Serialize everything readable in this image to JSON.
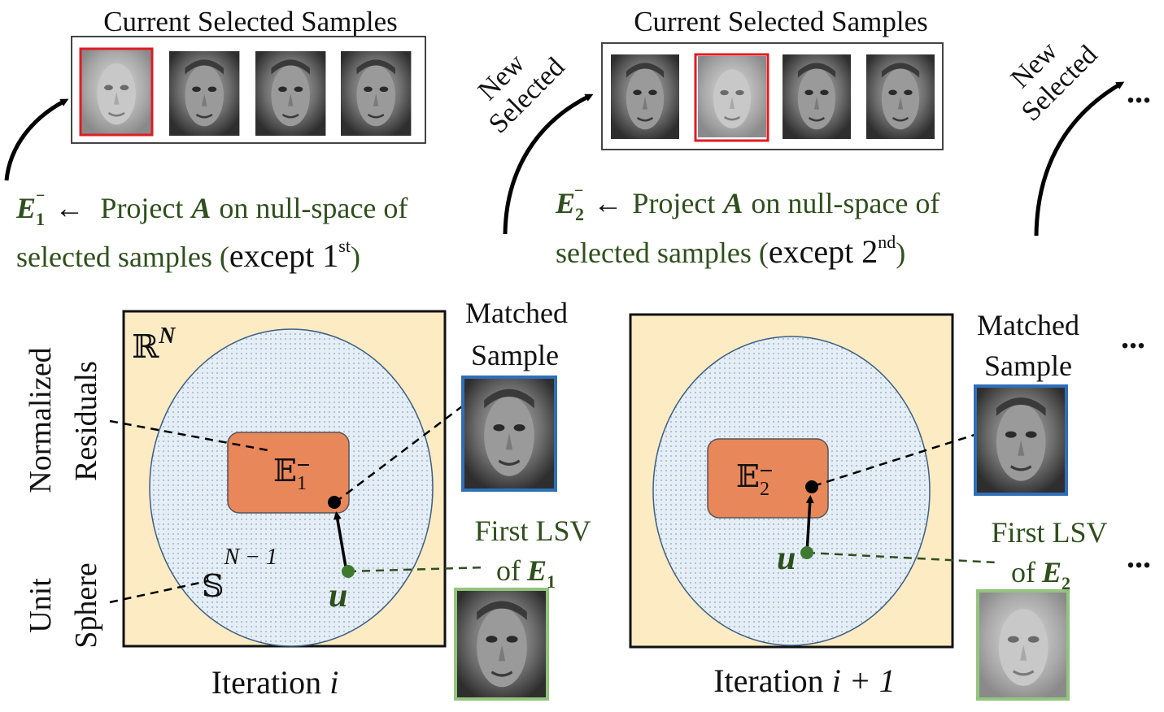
{
  "colors": {
    "accent_green": "#2f4f1c",
    "panel_fill": "#fdebc4",
    "sphere_fill": "#e5eef6",
    "subspace_fill": "#e8875a",
    "selected_border": "#e01b24",
    "matched_border": "#2f6fb8",
    "lsv_border": "#93c47d",
    "arrow": "#000000"
  },
  "top": {
    "left_title": "Current Selected Samples",
    "right_title": "Current Selected Samples",
    "new_selected_1": [
      "New",
      "Selected"
    ],
    "new_selected_2": [
      "New",
      "Selected"
    ],
    "ellipsis": "...",
    "step1": {
      "symbol_base": "E",
      "symbol_sub": "1",
      "arrow_text": "←",
      "prefix": "Project",
      "matrix": "A",
      "suffix": "on null-space of",
      "line2": "selected samples (",
      "except": "except 1",
      "sup": "st",
      "close": ")"
    },
    "step2": {
      "symbol_base": "E",
      "symbol_sub": "2",
      "arrow_text": "←",
      "prefix": "Project",
      "matrix": "A",
      "suffix": "on null-space of",
      "line2": "selected samples (",
      "except": "except 2",
      "sup": "nd",
      "close": ")"
    }
  },
  "bottom": {
    "side_labels": {
      "normalized": "Normalized",
      "residuals": "Residuals",
      "unit": "Unit",
      "sphere": "Sphere"
    },
    "left_panel": {
      "space_base": "ℝ",
      "space_sup": "N",
      "sphere_base": "𝕊",
      "sphere_sup": "N − 1",
      "subspace_base": "𝔼",
      "subspace_sub": "1",
      "u": "u",
      "matched_line1": "Matched",
      "matched_line2": "Sample",
      "lsv_line1": "First LSV",
      "lsv_line2": "of",
      "lsv_symbol_base": "E",
      "lsv_symbol_sub": "1",
      "caption": "Iteration",
      "caption_var": "i"
    },
    "right_panel": {
      "subspace_base": "𝔼",
      "subspace_sub": "2",
      "u": "u",
      "matched_line1": "Matched",
      "matched_line2": "Sample",
      "lsv_line1": "First LSV",
      "lsv_line2": "of",
      "lsv_symbol_base": "E",
      "lsv_symbol_sub": "2",
      "caption": "Iteration",
      "caption_var": "i + 1"
    },
    "ellipsis_top": "...",
    "ellipsis_bottom": "..."
  }
}
